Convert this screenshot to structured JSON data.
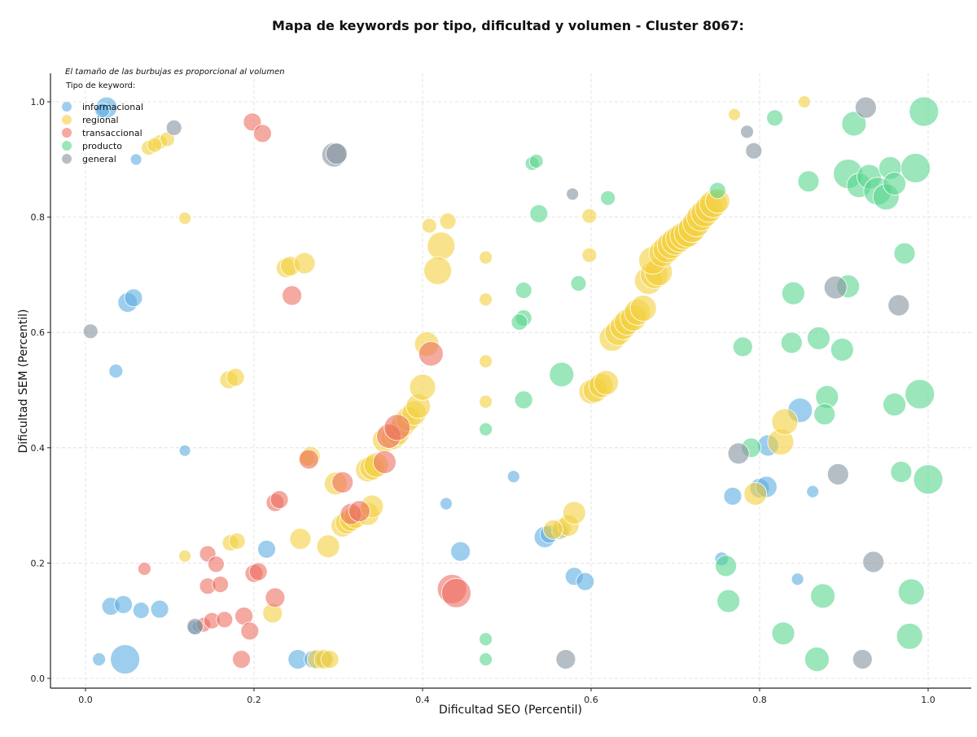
{
  "chart_data": {
    "type": "scatter",
    "title": "Mapa de keywords por tipo, dificultad y volumen - Cluster 8067:",
    "xlabel": "Dificultad SEO (Percentil)",
    "ylabel": "Dificultad SEM (Percentil)",
    "xlim": [
      -0.04,
      1.05
    ],
    "ylim": [
      -0.02,
      1.05
    ],
    "xticks": [
      "0.0",
      "0.2",
      "0.4",
      "0.6",
      "0.8",
      "1.0"
    ],
    "yticks": [
      "0.0",
      "0.2",
      "0.4",
      "0.6",
      "0.8",
      "1.0"
    ],
    "grid": true,
    "note": "El tamaño de las burbujas es proporcional al volumen",
    "legend_title": "Tipo de keyword:",
    "legend_position": "top-left",
    "series": [
      {
        "name": "informacional",
        "color": "#5DADE2",
        "points": [
          [
            0.025,
            0.99,
            26
          ],
          [
            0.02,
            0.985,
            18
          ],
          [
            0.06,
            0.9,
            14
          ],
          [
            0.05,
            0.652,
            24
          ],
          [
            0.057,
            0.66,
            22
          ],
          [
            0.036,
            0.533,
            17
          ],
          [
            0.118,
            0.395,
            14
          ],
          [
            0.016,
            0.033,
            16
          ],
          [
            0.047,
            0.033,
            36
          ],
          [
            0.03,
            0.125,
            22
          ],
          [
            0.045,
            0.128,
            22
          ],
          [
            0.066,
            0.118,
            20
          ],
          [
            0.088,
            0.12,
            22
          ],
          [
            0.13,
            0.088,
            18
          ],
          [
            0.133,
            0.09,
            14
          ],
          [
            0.215,
            0.224,
            22
          ],
          [
            0.252,
            0.033,
            24
          ],
          [
            0.27,
            0.033,
            22
          ],
          [
            0.283,
            0.033,
            20
          ],
          [
            0.428,
            0.303,
            15
          ],
          [
            0.445,
            0.22,
            24
          ],
          [
            0.508,
            0.35,
            15
          ],
          [
            0.545,
            0.245,
            26
          ],
          [
            0.55,
            0.25,
            22
          ],
          [
            0.563,
            0.255,
            20
          ],
          [
            0.58,
            0.177,
            22
          ],
          [
            0.593,
            0.168,
            22
          ],
          [
            0.755,
            0.207,
            17
          ],
          [
            0.768,
            0.316,
            22
          ],
          [
            0.8,
            0.33,
            24
          ],
          [
            0.808,
            0.332,
            26
          ],
          [
            0.81,
            0.404,
            26
          ],
          [
            0.848,
            0.465,
            30
          ],
          [
            0.845,
            0.172,
            15
          ],
          [
            0.863,
            0.324,
            15
          ]
        ]
      },
      {
        "name": "regional",
        "color": "#F4D03F",
        "points": [
          [
            0.075,
            0.92,
            18
          ],
          [
            0.088,
            0.93,
            18
          ],
          [
            0.097,
            0.935,
            18
          ],
          [
            0.082,
            0.925,
            18
          ],
          [
            0.118,
            0.798,
            15
          ],
          [
            0.238,
            0.712,
            24
          ],
          [
            0.243,
            0.715,
            24
          ],
          [
            0.26,
            0.72,
            26
          ],
          [
            0.17,
            0.518,
            22
          ],
          [
            0.178,
            0.522,
            22
          ],
          [
            0.118,
            0.212,
            15
          ],
          [
            0.172,
            0.235,
            20
          ],
          [
            0.18,
            0.238,
            20
          ],
          [
            0.222,
            0.113,
            24
          ],
          [
            0.255,
            0.242,
            26
          ],
          [
            0.288,
            0.229,
            28
          ],
          [
            0.267,
            0.385,
            24
          ],
          [
            0.263,
            0.382,
            20
          ],
          [
            0.297,
            0.338,
            28
          ],
          [
            0.305,
            0.265,
            28
          ],
          [
            0.31,
            0.27,
            28
          ],
          [
            0.315,
            0.275,
            28
          ],
          [
            0.32,
            0.28,
            28
          ],
          [
            0.335,
            0.285,
            28
          ],
          [
            0.34,
            0.298,
            28
          ],
          [
            0.335,
            0.362,
            30
          ],
          [
            0.34,
            0.365,
            30
          ],
          [
            0.345,
            0.37,
            30
          ],
          [
            0.355,
            0.413,
            30
          ],
          [
            0.365,
            0.418,
            30
          ],
          [
            0.37,
            0.425,
            30
          ],
          [
            0.377,
            0.44,
            30
          ],
          [
            0.383,
            0.45,
            30
          ],
          [
            0.39,
            0.46,
            30
          ],
          [
            0.395,
            0.472,
            30
          ],
          [
            0.4,
            0.505,
            32
          ],
          [
            0.405,
            0.58,
            30
          ],
          [
            0.408,
            0.785,
            18
          ],
          [
            0.43,
            0.793,
            20
          ],
          [
            0.422,
            0.75,
            34
          ],
          [
            0.418,
            0.707,
            34
          ],
          [
            0.475,
            0.73,
            16
          ],
          [
            0.475,
            0.657,
            16
          ],
          [
            0.475,
            0.55,
            16
          ],
          [
            0.475,
            0.48,
            16
          ],
          [
            0.275,
            0.033,
            24
          ],
          [
            0.283,
            0.033,
            24
          ],
          [
            0.29,
            0.033,
            22
          ],
          [
            0.565,
            0.26,
            24
          ],
          [
            0.573,
            0.265,
            26
          ],
          [
            0.58,
            0.287,
            28
          ],
          [
            0.555,
            0.258,
            24
          ],
          [
            0.598,
            0.802,
            18
          ],
          [
            0.598,
            0.734,
            18
          ],
          [
            0.6,
            0.497,
            30
          ],
          [
            0.605,
            0.5,
            30
          ],
          [
            0.612,
            0.508,
            30
          ],
          [
            0.618,
            0.513,
            30
          ],
          [
            0.625,
            0.59,
            32
          ],
          [
            0.632,
            0.6,
            32
          ],
          [
            0.638,
            0.61,
            32
          ],
          [
            0.643,
            0.618,
            32
          ],
          [
            0.65,
            0.625,
            32
          ],
          [
            0.655,
            0.635,
            32
          ],
          [
            0.662,
            0.642,
            32
          ],
          [
            0.668,
            0.69,
            34
          ],
          [
            0.675,
            0.7,
            34
          ],
          [
            0.68,
            0.705,
            34
          ],
          [
            0.673,
            0.725,
            34
          ],
          [
            0.685,
            0.738,
            34
          ],
          [
            0.69,
            0.745,
            34
          ],
          [
            0.695,
            0.752,
            34
          ],
          [
            0.7,
            0.758,
            34
          ],
          [
            0.705,
            0.763,
            34
          ],
          [
            0.71,
            0.768,
            34
          ],
          [
            0.715,
            0.772,
            34
          ],
          [
            0.72,
            0.78,
            34
          ],
          [
            0.725,
            0.79,
            34
          ],
          [
            0.73,
            0.8,
            34
          ],
          [
            0.735,
            0.807,
            34
          ],
          [
            0.74,
            0.815,
            34
          ],
          [
            0.745,
            0.823,
            34
          ],
          [
            0.75,
            0.828,
            30
          ],
          [
            0.77,
            0.978,
            15
          ],
          [
            0.853,
            1.0,
            15
          ],
          [
            0.795,
            0.32,
            28
          ],
          [
            0.825,
            0.41,
            32
          ],
          [
            0.83,
            0.445,
            32
          ]
        ]
      },
      {
        "name": "transaccional",
        "color": "#EC7063",
        "points": [
          [
            0.198,
            0.965,
            22
          ],
          [
            0.21,
            0.945,
            22
          ],
          [
            0.245,
            0.664,
            24
          ],
          [
            0.07,
            0.19,
            16
          ],
          [
            0.145,
            0.216,
            20
          ],
          [
            0.155,
            0.198,
            20
          ],
          [
            0.145,
            0.16,
            20
          ],
          [
            0.16,
            0.163,
            20
          ],
          [
            0.14,
            0.093,
            18
          ],
          [
            0.15,
            0.1,
            20
          ],
          [
            0.165,
            0.102,
            20
          ],
          [
            0.188,
            0.108,
            22
          ],
          [
            0.185,
            0.033,
            22
          ],
          [
            0.195,
            0.082,
            22
          ],
          [
            0.2,
            0.182,
            22
          ],
          [
            0.205,
            0.185,
            22
          ],
          [
            0.225,
            0.14,
            24
          ],
          [
            0.225,
            0.305,
            22
          ],
          [
            0.23,
            0.31,
            22
          ],
          [
            0.265,
            0.38,
            24
          ],
          [
            0.305,
            0.34,
            26
          ],
          [
            0.315,
            0.285,
            26
          ],
          [
            0.325,
            0.29,
            26
          ],
          [
            0.355,
            0.375,
            28
          ],
          [
            0.36,
            0.42,
            30
          ],
          [
            0.37,
            0.435,
            32
          ],
          [
            0.41,
            0.563,
            30
          ],
          [
            0.435,
            0.155,
            36
          ],
          [
            0.44,
            0.148,
            36
          ]
        ]
      },
      {
        "name": "producto",
        "color": "#58D68D",
        "points": [
          [
            0.53,
            0.893,
            17
          ],
          [
            0.535,
            0.897,
            17
          ],
          [
            0.538,
            0.806,
            22
          ],
          [
            0.62,
            0.833,
            18
          ],
          [
            0.585,
            0.685,
            19
          ],
          [
            0.52,
            0.673,
            20
          ],
          [
            0.52,
            0.625,
            20
          ],
          [
            0.515,
            0.618,
            20
          ],
          [
            0.565,
            0.527,
            30
          ],
          [
            0.52,
            0.483,
            22
          ],
          [
            0.475,
            0.432,
            16
          ],
          [
            0.475,
            0.068,
            16
          ],
          [
            0.475,
            0.033,
            16
          ],
          [
            0.75,
            0.846,
            20
          ],
          [
            0.818,
            0.972,
            20
          ],
          [
            0.858,
            0.862,
            26
          ],
          [
            0.84,
            0.668,
            28
          ],
          [
            0.838,
            0.582,
            26
          ],
          [
            0.87,
            0.59,
            28
          ],
          [
            0.78,
            0.575,
            24
          ],
          [
            0.898,
            0.57,
            28
          ],
          [
            0.905,
            0.68,
            28
          ],
          [
            0.88,
            0.488,
            28
          ],
          [
            0.877,
            0.458,
            26
          ],
          [
            0.79,
            0.4,
            24
          ],
          [
            0.76,
            0.195,
            26
          ],
          [
            0.763,
            0.134,
            28
          ],
          [
            0.828,
            0.078,
            28
          ],
          [
            0.868,
            0.033,
            30
          ],
          [
            0.875,
            0.143,
            30
          ],
          [
            0.912,
            0.962,
            30
          ],
          [
            0.905,
            0.875,
            36
          ],
          [
            0.918,
            0.855,
            30
          ],
          [
            0.93,
            0.87,
            30
          ],
          [
            0.94,
            0.845,
            34
          ],
          [
            0.95,
            0.835,
            32
          ],
          [
            0.955,
            0.885,
            28
          ],
          [
            0.96,
            0.858,
            28
          ],
          [
            0.985,
            0.885,
            36
          ],
          [
            0.995,
            0.983,
            36
          ],
          [
            0.972,
            0.737,
            26
          ],
          [
            0.96,
            0.475,
            28
          ],
          [
            0.99,
            0.493,
            36
          ],
          [
            0.968,
            0.358,
            26
          ],
          [
            1.0,
            0.345,
            36
          ],
          [
            0.98,
            0.15,
            32
          ],
          [
            0.978,
            0.073,
            32
          ]
        ]
      },
      {
        "name": "general",
        "color": "#85929E",
        "points": [
          [
            0.105,
            0.955,
            19
          ],
          [
            0.006,
            0.602,
            18
          ],
          [
            0.295,
            0.908,
            30
          ],
          [
            0.298,
            0.91,
            26
          ],
          [
            0.13,
            0.09,
            20
          ],
          [
            0.57,
            0.033,
            24
          ],
          [
            0.578,
            0.84,
            15
          ],
          [
            0.785,
            0.948,
            16
          ],
          [
            0.793,
            0.915,
            20
          ],
          [
            0.926,
            0.99,
            26
          ],
          [
            0.89,
            0.678,
            28
          ],
          [
            0.965,
            0.647,
            26
          ],
          [
            0.775,
            0.39,
            26
          ],
          [
            0.893,
            0.354,
            26
          ],
          [
            0.935,
            0.202,
            26
          ],
          [
            0.922,
            0.033,
            24
          ]
        ]
      }
    ]
  }
}
